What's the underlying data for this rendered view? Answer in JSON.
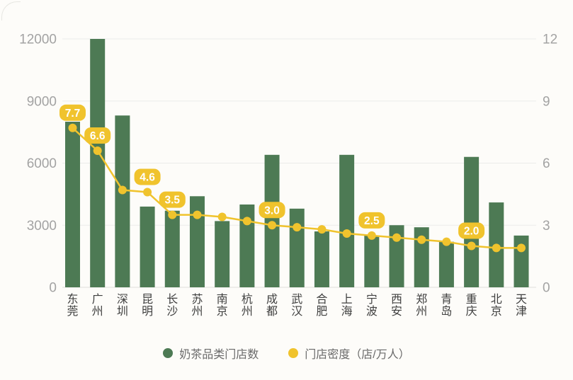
{
  "chart_data": {
    "type": "combo",
    "categories": [
      "东莞",
      "广州",
      "深圳",
      "昆明",
      "长沙",
      "苏州",
      "南京",
      "杭州",
      "成都",
      "武汉",
      "合肥",
      "上海",
      "宁波",
      "西安",
      "郑州",
      "青岛",
      "重庆",
      "北京",
      "天津"
    ],
    "series": [
      {
        "name": "奶茶品类门店数",
        "type": "bar",
        "axis": "left",
        "color": "#4d7a54",
        "values": [
          8000,
          12000,
          8300,
          3900,
          3700,
          4400,
          3200,
          4000,
          6400,
          3800,
          2700,
          6400,
          2500,
          3000,
          2900,
          2200,
          6300,
          4100,
          2500
        ]
      },
      {
        "name": "门店密度（店/万人）",
        "type": "line",
        "axis": "right",
        "color": "#f0c32d",
        "values": [
          7.7,
          6.6,
          4.7,
          4.6,
          3.5,
          3.5,
          3.4,
          3.2,
          3.0,
          2.9,
          2.8,
          2.6,
          2.5,
          2.4,
          2.3,
          2.2,
          2.0,
          1.9,
          1.9
        ],
        "point_labels": [
          "7.7",
          "6.6",
          null,
          "4.6",
          "3.5",
          null,
          null,
          null,
          "3.0",
          null,
          null,
          null,
          "2.5",
          null,
          null,
          null,
          "2.0",
          null,
          null
        ]
      }
    ],
    "left_axis": {
      "ticks": [
        0,
        3000,
        6000,
        9000,
        12000
      ],
      "range": [
        0,
        12000
      ]
    },
    "right_axis": {
      "ticks": [
        0,
        3,
        6,
        9,
        12
      ],
      "range": [
        0,
        12
      ]
    },
    "grid": true,
    "legend_position": "bottom"
  },
  "legend": {
    "items": [
      {
        "label": "奶茶品类门店数",
        "color": "#4d7a54"
      },
      {
        "label": "门店密度（店/万人）",
        "color": "#f0c32d"
      }
    ]
  },
  "colors": {
    "background": "#fdfcf9",
    "bar": "#4d7a54",
    "line": "#f0c32d",
    "badge_text": "#ffffff",
    "grid": "#ececea",
    "baseline": "#dededa",
    "axis_label": "#a3a3a3",
    "category_label": "#3f3f3f",
    "legend_text": "#6a6a6a"
  }
}
